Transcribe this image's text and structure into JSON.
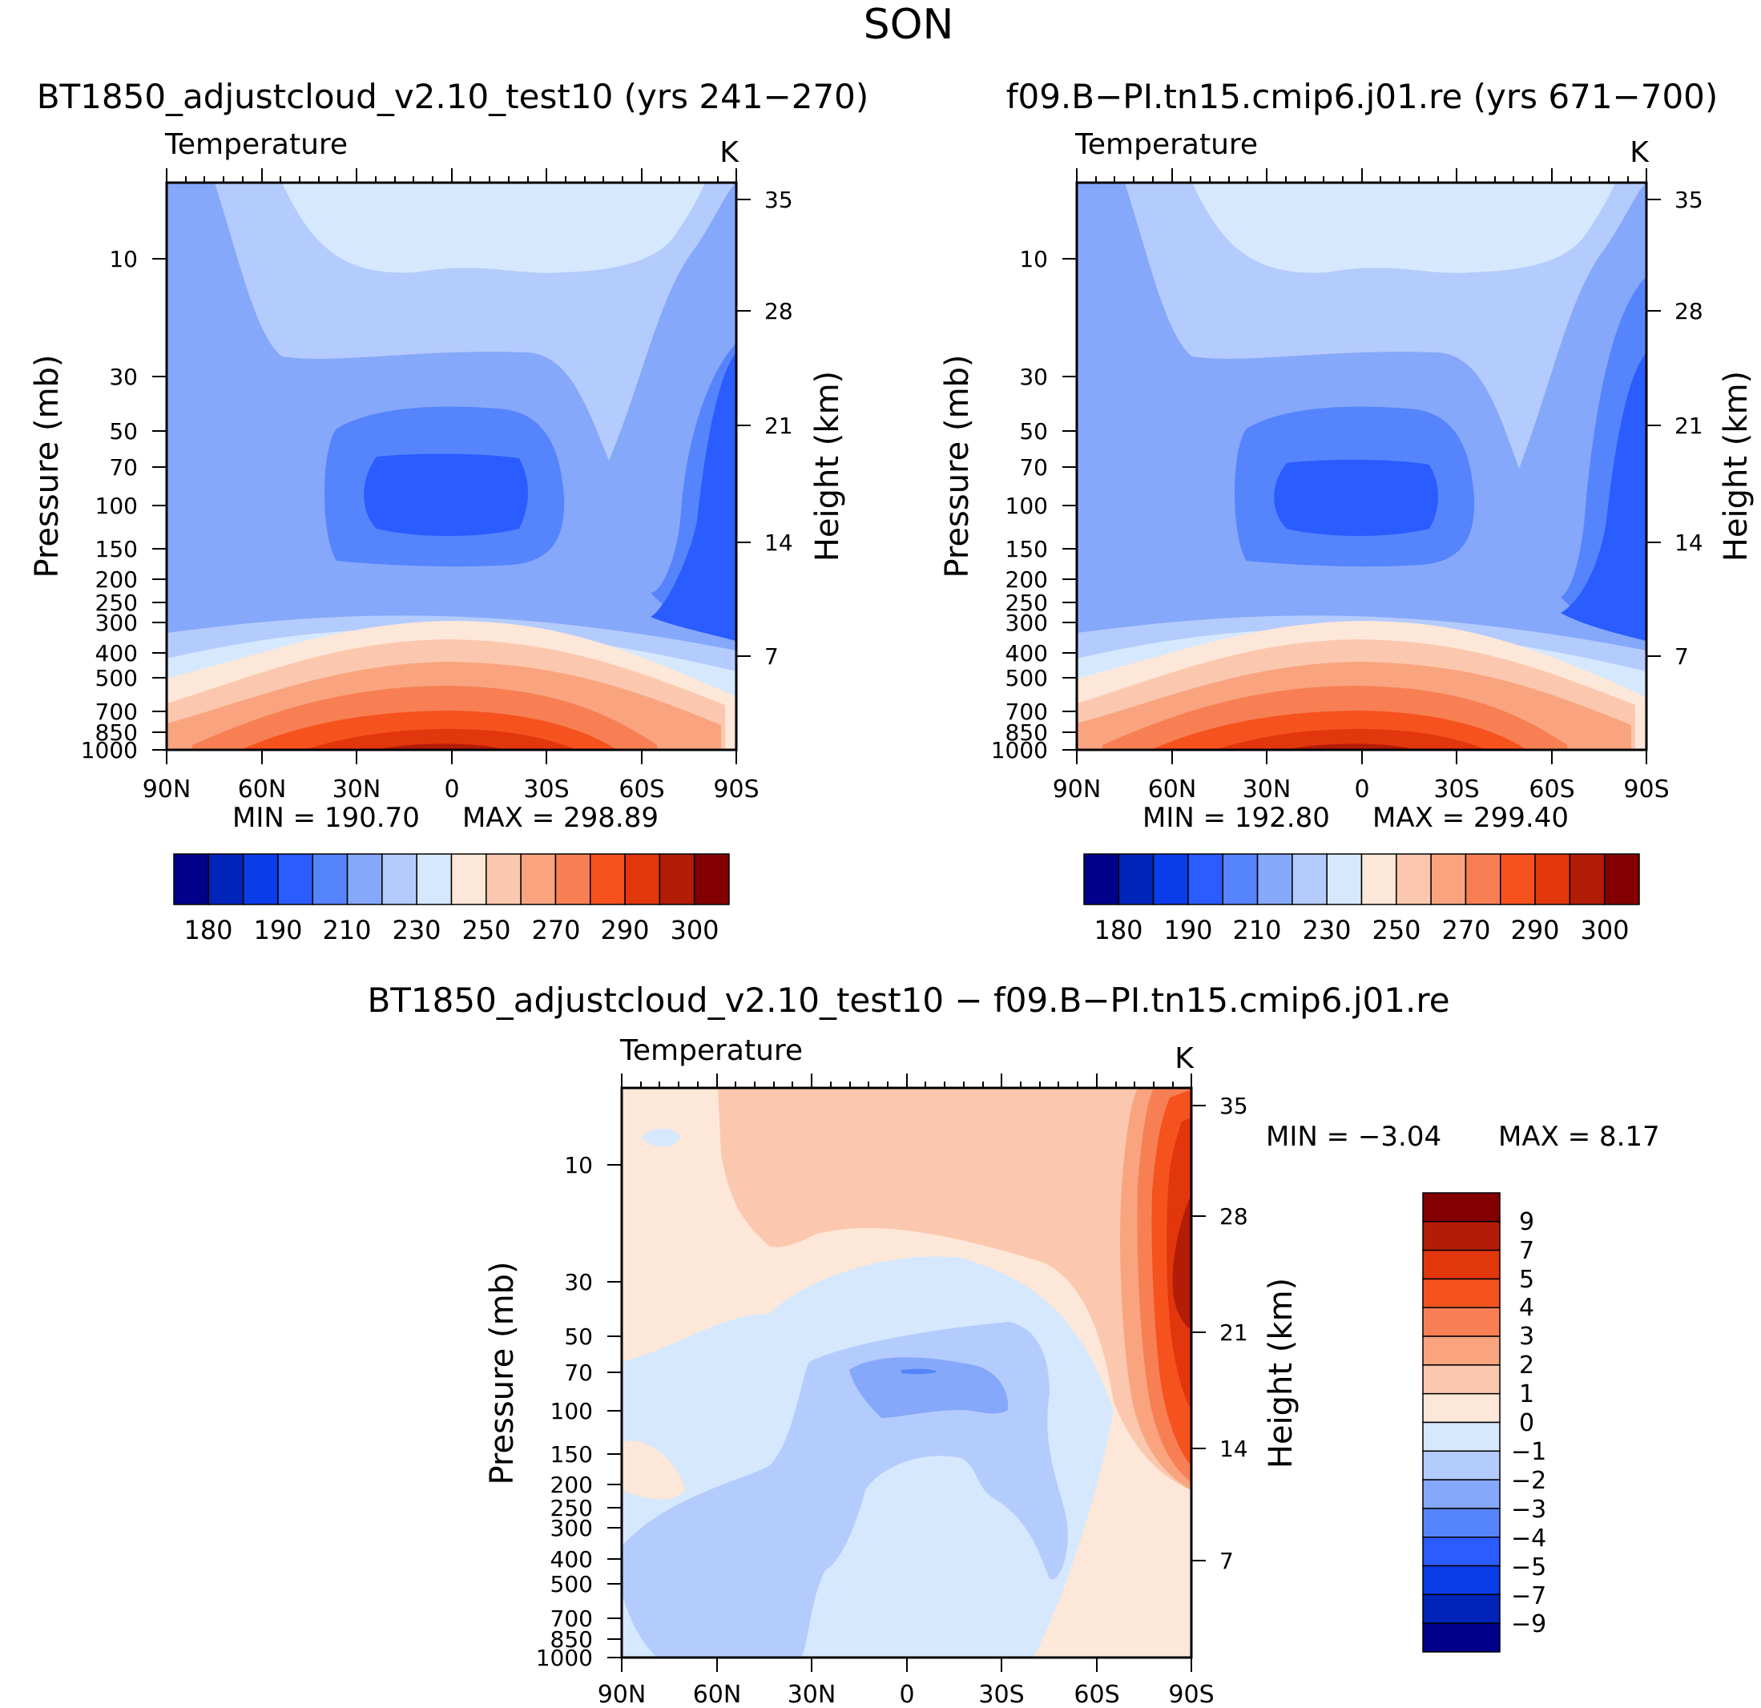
{
  "season": "SON",
  "chart_data": [
    {
      "type": "heatmap",
      "id": "a",
      "title": "BT1850_adjustcloud_v2.10_test10 (yrs 241−270)",
      "variable": "Temperature",
      "units": "K",
      "xlabel": "",
      "ylabel": "Pressure (mb)",
      "ylabel_right": "Height (km)",
      "x_ticks": [
        "90N",
        "60N",
        "30N",
        "0",
        "30S",
        "60S",
        "90S"
      ],
      "x_range_lat": [
        90,
        -90
      ],
      "y_ticks_pressure": [
        "10",
        "30",
        "50",
        "70",
        "100",
        "150",
        "200",
        "250",
        "300",
        "400",
        "500",
        "700",
        "850",
        "1000"
      ],
      "y_ticks_height": [
        "35",
        "28",
        "21",
        "14",
        "7"
      ],
      "ylim_pressure": [
        1000,
        4
      ],
      "min_label": "MIN = 190.70",
      "max_label": "MAX = 298.89",
      "min": 190.7,
      "max": 298.89,
      "colorbar": {
        "orientation": "horizontal",
        "levels": [
          180,
          190,
          200,
          210,
          220,
          230,
          240,
          250,
          260,
          270,
          280,
          290,
          300
        ],
        "tick_labels": [
          "180",
          "190",
          "210",
          "230",
          "250",
          "270",
          "290",
          "300"
        ],
        "colors": [
          "#00008a",
          "#0025b8",
          "#0a3ce8",
          "#2a5cff",
          "#5584fd",
          "#86a8fb",
          "#b4cbfd",
          "#d6e8fd",
          "#fde7d8",
          "#fbc8af",
          "#f9a47f",
          "#f77f53",
          "#f5521e",
          "#e2360c",
          "#b31c07",
          "#820002"
        ]
      }
    },
    {
      "type": "heatmap",
      "id": "b",
      "title": "f09.B−PI.tn15.cmip6.j01.re (yrs 671−700)",
      "variable": "Temperature",
      "units": "K",
      "xlabel": "",
      "ylabel": "Pressure (mb)",
      "ylabel_right": "Height (km)",
      "x_ticks": [
        "90N",
        "60N",
        "30N",
        "0",
        "30S",
        "60S",
        "90S"
      ],
      "x_range_lat": [
        90,
        -90
      ],
      "y_ticks_pressure": [
        "10",
        "30",
        "50",
        "70",
        "100",
        "150",
        "200",
        "250",
        "300",
        "400",
        "500",
        "700",
        "850",
        "1000"
      ],
      "y_ticks_height": [
        "35",
        "28",
        "21",
        "14",
        "7"
      ],
      "ylim_pressure": [
        1000,
        4
      ],
      "min_label": "MIN = 192.80",
      "max_label": "MAX = 299.40",
      "min": 192.8,
      "max": 299.4,
      "colorbar": {
        "orientation": "horizontal",
        "levels": [
          180,
          190,
          200,
          210,
          220,
          230,
          240,
          250,
          260,
          270,
          280,
          290,
          300
        ],
        "tick_labels": [
          "180",
          "190",
          "210",
          "230",
          "250",
          "270",
          "290",
          "300"
        ],
        "colors": [
          "#00008a",
          "#0025b8",
          "#0a3ce8",
          "#2a5cff",
          "#5584fd",
          "#86a8fb",
          "#b4cbfd",
          "#d6e8fd",
          "#fde7d8",
          "#fbc8af",
          "#f9a47f",
          "#f77f53",
          "#f5521e",
          "#e2360c",
          "#b31c07",
          "#820002"
        ]
      }
    },
    {
      "type": "heatmap",
      "id": "diff",
      "title": "BT1850_adjustcloud_v2.10_test10 − f09.B−PI.tn15.cmip6.j01.re",
      "variable": "Temperature",
      "units": "K",
      "xlabel": "",
      "ylabel": "Pressure (mb)",
      "ylabel_right": "Height (km)",
      "x_ticks": [
        "90N",
        "60N",
        "30N",
        "0",
        "30S",
        "60S",
        "90S"
      ],
      "x_range_lat": [
        90,
        -90
      ],
      "y_ticks_pressure": [
        "10",
        "30",
        "50",
        "70",
        "100",
        "150",
        "200",
        "250",
        "300",
        "400",
        "500",
        "700",
        "850",
        "1000"
      ],
      "y_ticks_height": [
        "35",
        "28",
        "21",
        "14",
        "7"
      ],
      "ylim_pressure": [
        1000,
        4
      ],
      "min_label": "MIN = −3.04",
      "max_label": "MAX = 8.17",
      "min": -3.04,
      "max": 8.17,
      "colorbar": {
        "orientation": "vertical",
        "tick_labels_top_to_bottom": [
          "9",
          "7",
          "5",
          "4",
          "3",
          "2",
          "1",
          "0",
          "−1",
          "−2",
          "−3",
          "−4",
          "−5",
          "−7",
          "−9"
        ],
        "colors_top_to_bottom": [
          "#820002",
          "#b31c07",
          "#e2360c",
          "#f5521e",
          "#f77f53",
          "#f9a47f",
          "#fbc8af",
          "#fde7d8",
          "#d6e8fd",
          "#b4cbfd",
          "#86a8fb",
          "#5584fd",
          "#2a5cff",
          "#0a3ce8",
          "#0025b8",
          "#00008a"
        ]
      }
    }
  ]
}
